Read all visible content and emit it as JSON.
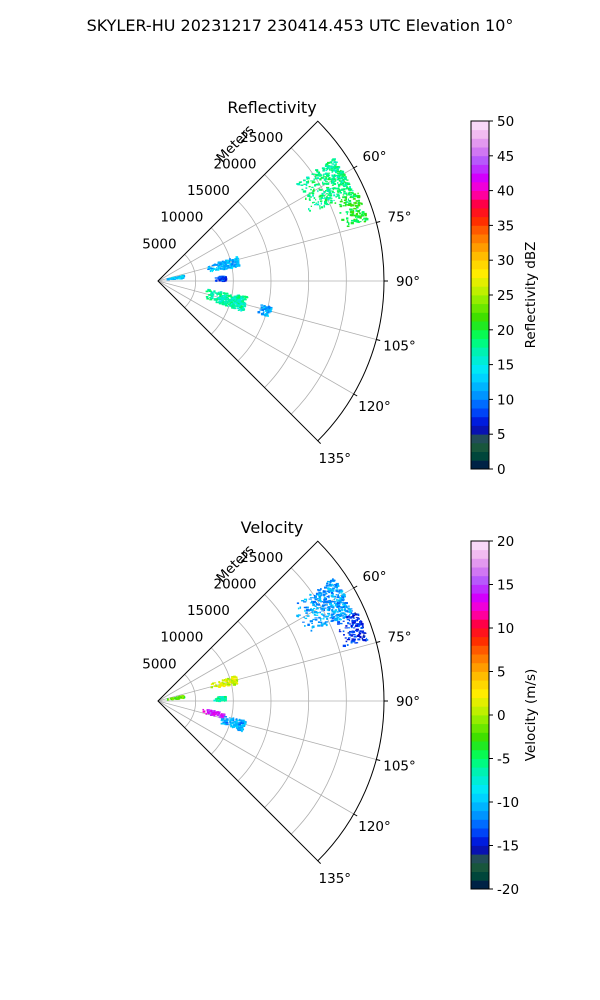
{
  "figure": {
    "suptitle": "SKYLER-HU  20231217  230414.453 UTC Elevation 10°"
  },
  "chart_data": [
    {
      "type": "heatmap",
      "projection": "polar",
      "title": "Reflectivity",
      "theta_range_deg": [
        45,
        135
      ],
      "r_range_m": [
        0,
        30000
      ],
      "theta_ticks": [
        "60°",
        "75°",
        "90°",
        "105°",
        "120°",
        "135°"
      ],
      "r_tick_values": [
        5000,
        10000,
        15000,
        20000,
        25000
      ],
      "r_ticks": [
        "5000",
        "10000",
        "15000",
        "20000",
        "25000"
      ],
      "r_axis_label": "Meters",
      "grid": true,
      "colorbar": {
        "label": "Reflectivity dBZ",
        "range": [
          0,
          50
        ],
        "tick_values": [
          0,
          5,
          10,
          15,
          20,
          25,
          30,
          35,
          40,
          45,
          50
        ],
        "ticks": [
          "0",
          "5",
          "10",
          "15",
          "20",
          "25",
          "30",
          "35",
          "40",
          "45",
          "50"
        ]
      },
      "echo_regions": [
        {
          "theta_deg": [
            55,
            66
          ],
          "r_m": [
            21500,
            28500
          ],
          "value": 18
        },
        {
          "theta_deg": [
            66,
            74
          ],
          "r_m": [
            25500,
            29000
          ],
          "value": 20
        },
        {
          "theta_deg": [
            73,
            80
          ],
          "r_m": [
            6500,
            11000
          ],
          "value": 12
        },
        {
          "theta_deg": [
            78,
            84
          ],
          "r_m": [
            1000,
            3500
          ],
          "value": 13
        },
        {
          "theta_deg": [
            100,
            110
          ],
          "r_m": [
            6000,
            12000
          ],
          "value": 17
        },
        {
          "theta_deg": [
            103,
            108
          ],
          "r_m": [
            14000,
            15500
          ],
          "value": 12
        },
        {
          "theta_deg": [
            86,
            90
          ],
          "r_m": [
            7500,
            9000
          ],
          "value": 8
        }
      ]
    },
    {
      "type": "heatmap",
      "projection": "polar",
      "title": "Velocity",
      "theta_range_deg": [
        45,
        135
      ],
      "r_range_m": [
        0,
        30000
      ],
      "theta_ticks": [
        "60°",
        "75°",
        "90°",
        "105°",
        "120°",
        "135°"
      ],
      "r_tick_values": [
        5000,
        10000,
        15000,
        20000,
        25000
      ],
      "r_ticks": [
        "5000",
        "10000",
        "15000",
        "20000",
        "25000"
      ],
      "r_axis_label": "Meters",
      "grid": true,
      "colorbar": {
        "label": "Velocity (m/s)",
        "range": [
          -20,
          20
        ],
        "tick_values": [
          -20,
          -15,
          -10,
          -5,
          0,
          5,
          10,
          15,
          20
        ],
        "ticks": [
          "-20",
          "-15",
          "-10",
          "-5",
          "0",
          "5",
          "10",
          "15",
          "20"
        ]
      },
      "echo_regions": [
        {
          "theta_deg": [
            55,
            66
          ],
          "r_m": [
            21500,
            28500
          ],
          "value": -11
        },
        {
          "theta_deg": [
            66,
            74
          ],
          "r_m": [
            25500,
            29000
          ],
          "value": -14
        },
        {
          "theta_deg": [
            72,
            78
          ],
          "r_m": [
            7000,
            11000
          ],
          "value": 1
        },
        {
          "theta_deg": [
            78,
            84
          ],
          "r_m": [
            1000,
            3500
          ],
          "value": -2
        },
        {
          "theta_deg": [
            100,
            105
          ],
          "r_m": [
            6000,
            9000
          ],
          "value": 14
        },
        {
          "theta_deg": [
            103,
            110
          ],
          "r_m": [
            8500,
            12000
          ],
          "value": -11
        },
        {
          "theta_deg": [
            86,
            90
          ],
          "r_m": [
            7500,
            9000
          ],
          "value": -6
        }
      ]
    }
  ]
}
